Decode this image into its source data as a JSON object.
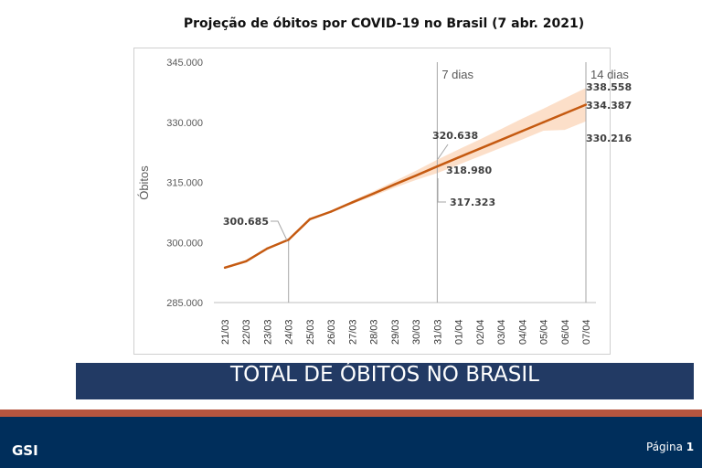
{
  "chart_data": {
    "type": "line",
    "title": "Projeção de óbitos por COVID-19 no Brasil (7 abr. 2021)",
    "xlabel": "",
    "ylabel": "Óbitos",
    "ylim": [
      285000,
      345000
    ],
    "yticks": [
      "285.000",
      "300.000",
      "315.000",
      "330.000",
      "345.000"
    ],
    "categories": [
      "21/03",
      "22/03",
      "23/03",
      "24/03",
      "25/03",
      "26/03",
      "27/03",
      "28/03",
      "29/03",
      "30/03",
      "31/03",
      "01/04",
      "02/04",
      "03/04",
      "04/04",
      "05/04",
      "06/04",
      "07/04"
    ],
    "series": [
      {
        "values": [
          293700,
          295300,
          298500,
          300685,
          305800,
          307700,
          310000,
          312200,
          314500,
          316700,
          318980,
          321200,
          323400,
          325600,
          327800,
          330000,
          332200,
          334387
        ],
        "color": "#c55a11"
      }
    ],
    "band": {
      "start_category": "26/03",
      "upper": [
        307900,
        310400,
        312800,
        315300,
        317900,
        320638,
        323200,
        325700,
        328300,
        330900,
        333400,
        336000,
        338558
      ],
      "lower": [
        307500,
        309600,
        311600,
        313700,
        315600,
        317323,
        319400,
        321500,
        323600,
        325700,
        327900,
        328100,
        330216
      ],
      "color": "#fbd9bf"
    },
    "vlines": [
      {
        "category": "24/03",
        "label": ""
      },
      {
        "category": "31/03",
        "label": "7 dias"
      },
      {
        "category": "07/04",
        "label": "14 dias"
      }
    ],
    "annotations": [
      "300.685",
      "320.638",
      "318.980",
      "317.323",
      "338.558",
      "334.387",
      "330.216"
    ],
    "grid": false,
    "legend": "none"
  },
  "banner": "TOTAL DE ÓBITOS NO BRASIL",
  "footer": {
    "org": "GSI",
    "page_label": "Página",
    "page_number": "1"
  }
}
